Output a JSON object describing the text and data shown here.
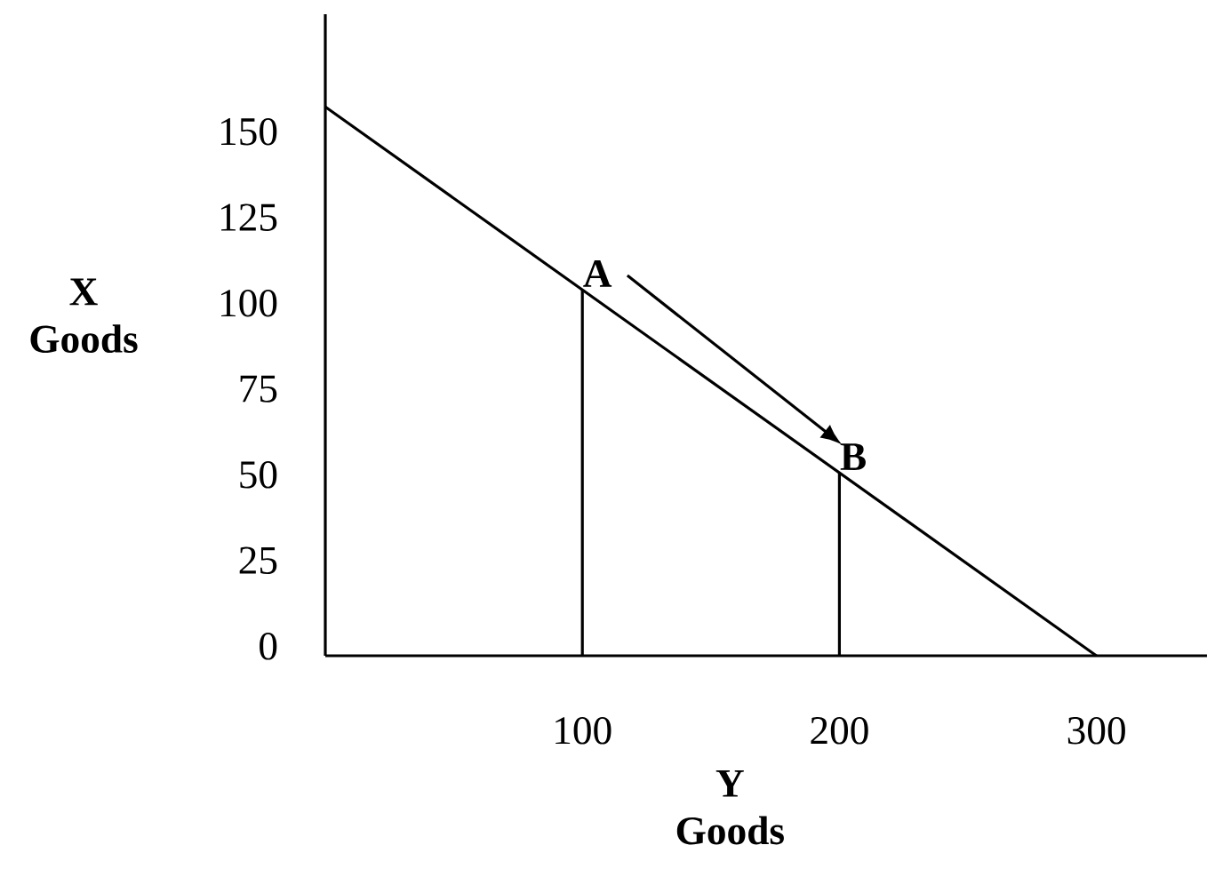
{
  "chart_data": {
    "type": "line",
    "xlabel": "Y Goods",
    "ylabel": "X Goods",
    "xlim": [
      0,
      343
    ],
    "ylim": [
      0,
      187
    ],
    "xticks": [
      100,
      200,
      300
    ],
    "yticks": [
      0,
      25,
      50,
      75,
      100,
      125,
      150
    ],
    "series": [
      {
        "color": "#000000",
        "x": [
          0,
          300
        ],
        "values": [
          160,
          0
        ]
      },
      {
        "color": "#000000",
        "x": [
          100,
          100
        ],
        "values": [
          0,
          106.7
        ]
      },
      {
        "color": "#000000",
        "x": [
          200,
          200
        ],
        "values": [
          0,
          53.3
        ]
      }
    ],
    "annotations": [
      {
        "text": "A",
        "x": 100,
        "y": 106.7
      },
      {
        "text": "B",
        "x": 200,
        "y": 53.3
      }
    ]
  }
}
